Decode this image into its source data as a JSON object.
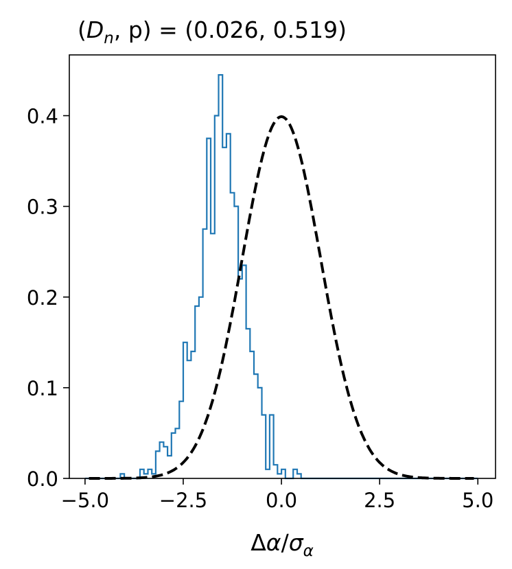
{
  "chart_data": {
    "type": "histogram",
    "title": "(D_n, p) = (0.026, 0.519)",
    "title_parts": {
      "open": "(",
      "D": "D",
      "n": "n",
      "comma_p": ", p) = (0.026, 0.519)"
    },
    "xlabel": "Δα/σα",
    "xlabel_parts": {
      "delta": "Δ",
      "alpha": "α",
      "slash": "/",
      "sigma": "σ",
      "sub": "α"
    },
    "xlim": [
      -5.4,
      5.45
    ],
    "ylim": [
      0,
      0.467
    ],
    "x_ticks": [
      -5.0,
      -2.5,
      0.0,
      2.5,
      5.0
    ],
    "x_tick_labels": [
      "−5.0",
      "−2.5",
      "0.0",
      "2.5",
      "5.0"
    ],
    "y_ticks": [
      0.0,
      0.1,
      0.2,
      0.3,
      0.4
    ],
    "y_tick_labels": [
      "0.0",
      "0.1",
      "0.2",
      "0.3",
      "0.4"
    ],
    "grid": false,
    "histogram": {
      "color": "#1f77b4",
      "bin_edges": [
        -5.0,
        -4.9,
        -4.8,
        -4.7,
        -4.6,
        -4.5,
        -4.4,
        -4.3,
        -4.2,
        -4.1,
        -4.0,
        -3.9,
        -3.8,
        -3.7,
        -3.6,
        -3.5,
        -3.4,
        -3.3,
        -3.2,
        -3.1,
        -3.0,
        -2.9,
        -2.8,
        -2.7,
        -2.6,
        -2.5,
        -2.4,
        -2.3,
        -2.2,
        -2.1,
        -2.0,
        -1.9,
        -1.8,
        -1.7,
        -1.6,
        -1.5,
        -1.4,
        -1.3,
        -1.2,
        -1.1,
        -1.0,
        -0.9,
        -0.8,
        -0.7,
        -0.6,
        -0.5,
        -0.4,
        -0.3,
        -0.2,
        -0.1,
        0.0,
        0.1,
        0.2,
        0.3,
        0.4,
        0.5,
        0.6,
        0.7,
        0.8,
        0.9,
        1.0,
        1.1,
        1.2,
        1.3,
        1.4,
        1.5,
        1.6,
        1.7,
        1.8,
        1.9,
        2.0,
        2.1,
        2.2,
        2.3,
        2.4,
        2.5,
        2.6,
        2.7,
        2.8,
        2.9,
        3.0,
        3.1,
        3.2,
        3.3,
        3.4,
        3.5,
        3.6,
        3.7,
        3.8,
        3.9,
        4.0,
        4.1,
        4.2,
        4.3,
        4.4,
        4.5,
        4.6,
        4.7,
        4.8,
        4.9,
        5.0
      ],
      "densities": [
        0,
        0,
        0,
        0,
        0,
        0,
        0,
        0,
        0,
        0.005,
        0,
        0,
        0,
        0,
        0.01,
        0.005,
        0.01,
        0.005,
        0.03,
        0.04,
        0.035,
        0.025,
        0.05,
        0.055,
        0.085,
        0.15,
        0.13,
        0.14,
        0.19,
        0.2,
        0.275,
        0.375,
        0.27,
        0.4,
        0.445,
        0.365,
        0.38,
        0.315,
        0.3,
        0.22,
        0.235,
        0.165,
        0.14,
        0.115,
        0.1,
        0.07,
        0.01,
        0.07,
        0.015,
        0.005,
        0.01,
        0,
        0,
        0.01,
        0.005,
        0,
        0,
        0,
        0,
        0,
        0,
        0,
        0,
        0,
        0,
        0,
        0,
        0,
        0,
        0,
        0,
        0,
        0,
        0,
        0,
        0,
        0,
        0,
        0,
        0,
        0,
        0,
        0,
        0,
        0,
        0,
        0,
        0,
        0,
        0,
        0,
        0,
        0,
        0,
        0,
        0,
        0,
        0,
        0,
        0
      ],
      "densities_note": ""
    },
    "curve": {
      "type": "normal_pdf",
      "mean": 0.0,
      "std": 1.0,
      "x_range": [
        -4.9,
        4.9
      ],
      "color": "#000000",
      "dashed": true
    }
  }
}
